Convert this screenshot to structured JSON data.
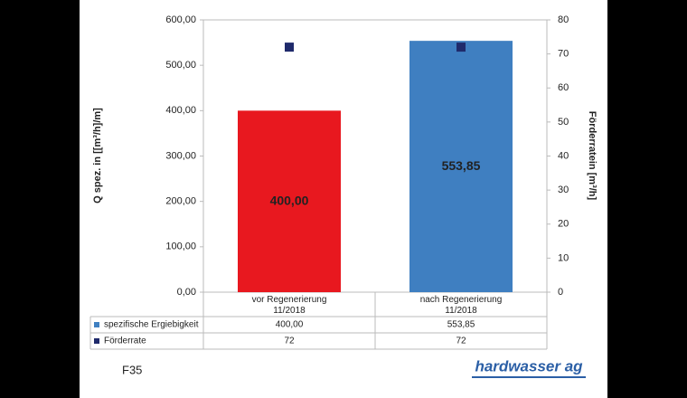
{
  "chart_data": {
    "type": "bar",
    "y_label": "Q spez. in [[m³/h]/m]",
    "y2_label": "Förderratein [m³/h]",
    "categories": [
      "vor Regenerierung 11/2018",
      "nach Regenerierung 11/2018"
    ],
    "series": [
      {
        "name": "spezifische Ergiebigkeit",
        "type": "bar",
        "color": "#3f7fc1",
        "colors": [
          "#e8181f",
          "#3f7fc1"
        ],
        "values": [
          400,
          553.85
        ],
        "value_labels": [
          "400,00",
          "553,85"
        ]
      },
      {
        "name": "Förderrate",
        "type": "scatter",
        "axis": "y2",
        "color": "#1f2a6b",
        "values": [
          72,
          72
        ]
      }
    ],
    "ylim": [
      0,
      600
    ],
    "yticks": [
      {
        "value": 0,
        "label": "0,00"
      },
      {
        "value": 100,
        "label": "100,00"
      },
      {
        "value": 200,
        "label": "200,00"
      },
      {
        "value": 300,
        "label": "300,00"
      },
      {
        "value": 400,
        "label": "400,00"
      },
      {
        "value": 500,
        "label": "500,00"
      },
      {
        "value": 600,
        "label": "600,00"
      }
    ],
    "y2lim": [
      0,
      80
    ],
    "y2ticks": [
      0,
      10,
      20,
      30,
      40,
      50,
      60,
      70,
      80
    ],
    "grid": false
  },
  "footer": {
    "code": "F35",
    "logo": "hardwasser ag"
  }
}
